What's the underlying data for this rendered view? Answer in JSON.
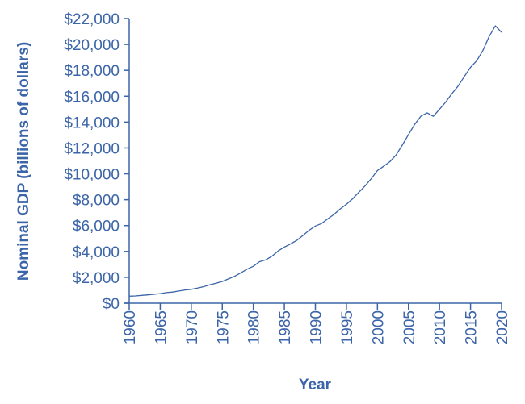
{
  "chart_data": {
    "type": "line",
    "title": "",
    "xlabel": "Year",
    "ylabel": "Nominal GDP (billions of dollars)",
    "xlim": [
      1960,
      2020
    ],
    "ylim": [
      0,
      22000
    ],
    "grid": false,
    "color": "#3b65a8",
    "x_ticks": [
      "1960",
      "1965",
      "1970",
      "1975",
      "1980",
      "1985",
      "1990",
      "1995",
      "2000",
      "2005",
      "2010",
      "2015",
      "2020"
    ],
    "y_ticks": [
      "$0",
      "$2,000",
      "$4,000",
      "$6,000",
      "$8,000",
      "$10,000",
      "$12,000",
      "$14,000",
      "$16,000",
      "$18,000",
      "$20,000",
      "$22,000"
    ],
    "series": [
      {
        "x": [
          1960,
          1961,
          1962,
          1963,
          1964,
          1965,
          1966,
          1967,
          1968,
          1969,
          1970,
          1971,
          1972,
          1973,
          1974,
          1975,
          1976,
          1977,
          1978,
          1979,
          1980,
          1981,
          1982,
          1983,
          1984,
          1985,
          1986,
          1987,
          1988,
          1989,
          1990,
          1991,
          1992,
          1993,
          1994,
          1995,
          1996,
          1997,
          1998,
          1999,
          2000,
          2001,
          2002,
          2003,
          2004,
          2005,
          2006,
          2007,
          2008,
          2009,
          2010,
          2011,
          2012,
          2013,
          2014,
          2015,
          2016,
          2017,
          2018,
          2019,
          2020
        ],
        "values": [
          543,
          563,
          605,
          639,
          686,
          744,
          815,
          862,
          943,
          1020,
          1073,
          1165,
          1279,
          1425,
          1545,
          1685,
          1873,
          2082,
          2352,
          2627,
          2857,
          3207,
          3344,
          3634,
          4038,
          4339,
          4580,
          4855,
          5236,
          5642,
          5963,
          6158,
          6520,
          6859,
          7287,
          7640,
          8073,
          8578,
          9063,
          9631,
          10251,
          10582,
          10936,
          11458,
          12214,
          13037,
          13815,
          14452,
          14713,
          14449,
          14992,
          15543,
          16197,
          16785,
          17527,
          18238,
          18745,
          19543,
          20612,
          21433,
          20937
        ]
      }
    ]
  }
}
